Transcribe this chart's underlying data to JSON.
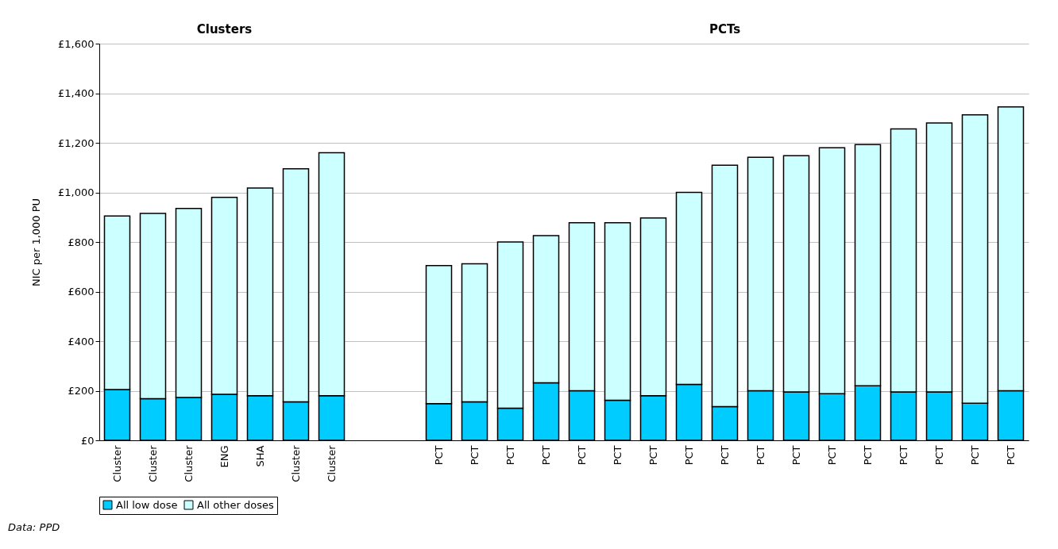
{
  "chart_data": {
    "type": "bar",
    "stacked": true,
    "ylabel": "NIC per 1,000 PU",
    "categories": [
      "Cluster",
      "Cluster",
      "Cluster",
      "ENG",
      "SHA",
      "Cluster",
      "Cluster",
      null,
      null,
      "PCT",
      "PCT",
      "PCT",
      "PCT",
      "PCT",
      "PCT",
      "PCT",
      "PCT",
      "PCT",
      "PCT",
      "PCT",
      "PCT",
      "PCT",
      "PCT",
      "PCT",
      "PCT",
      "PCT"
    ],
    "series": [
      {
        "name": "All low dose",
        "color": "#00ccff",
        "values": [
          205,
          168,
          173,
          186,
          180,
          155,
          180,
          null,
          null,
          148,
          155,
          130,
          232,
          200,
          162,
          180,
          226,
          136,
          200,
          195,
          188,
          220,
          195,
          195,
          150,
          200
        ]
      },
      {
        "name": "All other doses",
        "color": "#ccffff",
        "values": [
          700,
          747,
          762,
          794,
          838,
          940,
          980,
          null,
          null,
          557,
          557,
          670,
          594,
          678,
          716,
          717,
          774,
          974,
          942,
          953,
          992,
          973,
          1061,
          1085,
          1163,
          1145
        ]
      }
    ],
    "ylim": [
      0,
      1600
    ],
    "yticks": [
      {
        "value": 0,
        "label": "£0"
      },
      {
        "value": 200,
        "label": "£200"
      },
      {
        "value": 400,
        "label": "£400"
      },
      {
        "value": 600,
        "label": "£600"
      },
      {
        "value": 800,
        "label": "£800"
      },
      {
        "value": 1000,
        "label": "£1,000"
      },
      {
        "value": 1200,
        "label": "£1,200"
      },
      {
        "value": 1400,
        "label": "£1,400"
      },
      {
        "value": 1600,
        "label": "£1,600"
      }
    ],
    "grid": "y",
    "legend": "bottom",
    "annotations": [
      "Clusters",
      "PCTs",
      "Data: PPD"
    ]
  }
}
